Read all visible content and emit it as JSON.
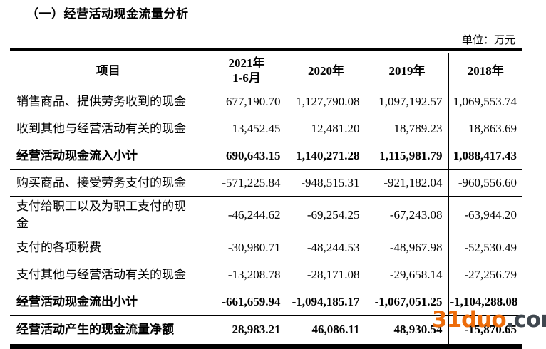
{
  "title": "（一）经营活动现金流量分析",
  "unit_label": "单位：万元",
  "table": {
    "header": {
      "item_label": "项目",
      "periods": [
        [
          "2021年",
          "1-6月"
        ],
        [
          "2020年"
        ],
        [
          "2019年"
        ],
        [
          "2018年"
        ]
      ]
    },
    "rows": [
      {
        "item": "销售商品、提供劳务收到的现金",
        "values": [
          "677,190.70",
          "1,127,790.08",
          "1,097,192.57",
          "1,069,553.74"
        ],
        "bold": false
      },
      {
        "item": "收到其他与经营活动有关的现金",
        "values": [
          "13,452.45",
          "12,481.20",
          "18,789.23",
          "18,863.69"
        ],
        "bold": false
      },
      {
        "item": "经营活动现金流入小计",
        "values": [
          "690,643.15",
          "1,140,271.28",
          "1,115,981.79",
          "1,088,417.43"
        ],
        "bold": true
      },
      {
        "item": "购买商品、接受劳务支付的现金",
        "values": [
          "-571,225.84",
          "-948,515.31",
          "-921,182.04",
          "-960,556.60"
        ],
        "bold": false
      },
      {
        "item": "支付给职工以及为职工支付的现金",
        "values": [
          "-46,244.62",
          "-69,254.25",
          "-67,243.08",
          "-63,944.20"
        ],
        "bold": false
      },
      {
        "item": "支付的各项税费",
        "values": [
          "-30,980.71",
          "-48,244.53",
          "-48,967.98",
          "-52,530.49"
        ],
        "bold": false
      },
      {
        "item": "支付其他与经营活动有关的现金",
        "values": [
          "-13,208.78",
          "-28,171.08",
          "-29,658.14",
          "-27,256.79"
        ],
        "bold": false
      },
      {
        "item": "经营活动现金流出小计",
        "values": [
          "-661,659.94",
          "-1,094,185.17",
          "-1,067,051.25",
          "-1,104,288.08"
        ],
        "bold": true
      },
      {
        "item": "经营活动产生的现金流量净额",
        "values": [
          "28,983.21",
          "46,086.11",
          "48,930.54",
          "-15,870.65"
        ],
        "bold": true
      }
    ]
  },
  "watermark": {
    "brand": "31duo",
    "suffix": ".com",
    "brand_color": "#ed6c0a",
    "suffix_color": "#3f474f"
  }
}
